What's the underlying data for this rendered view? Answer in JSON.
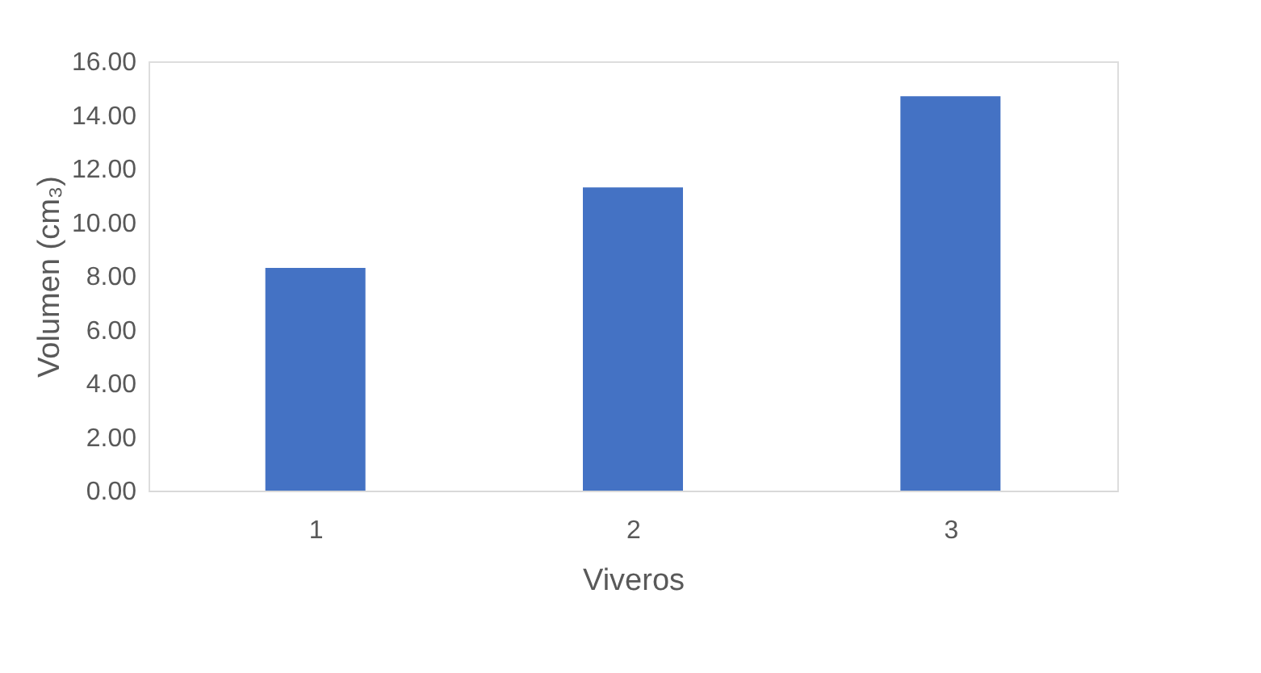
{
  "chart_data": {
    "type": "bar",
    "xlabel": "Viveros",
    "ylabel": "Volumen (cm₃)",
    "categories": [
      "1",
      "2",
      "3"
    ],
    "values": [
      8.3,
      11.3,
      14.7
    ],
    "color": "#4472c4",
    "ylim": [
      0,
      16
    ],
    "yticks": [
      {
        "value": 0,
        "label": "0.00"
      },
      {
        "value": 2,
        "label": "2.00"
      },
      {
        "value": 4,
        "label": "4.00"
      },
      {
        "value": 6,
        "label": "6.00"
      },
      {
        "value": 8,
        "label": "8.00"
      },
      {
        "value": 10,
        "label": "10.00"
      },
      {
        "value": 12,
        "label": "12.00"
      },
      {
        "value": 14,
        "label": "14.00"
      },
      {
        "value": 16,
        "label": "16.00"
      }
    ],
    "grid": false
  }
}
